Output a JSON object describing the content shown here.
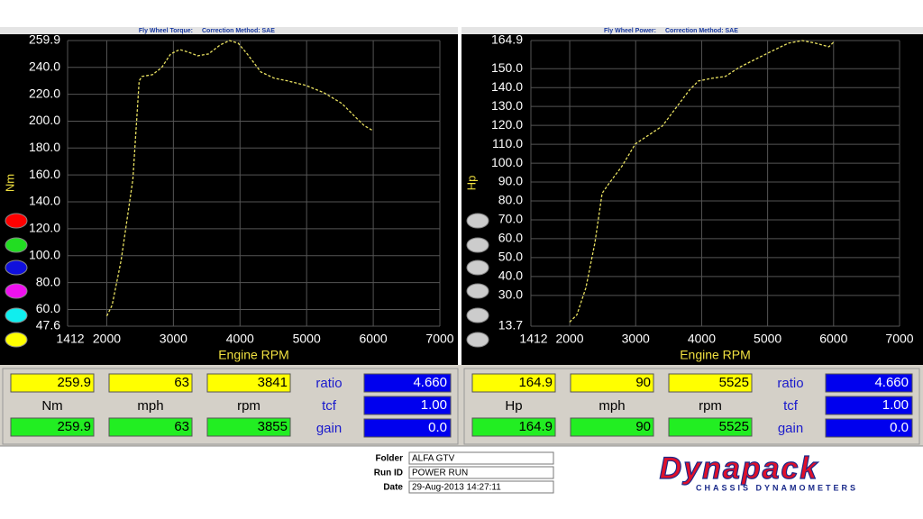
{
  "chart_data": [
    {
      "type": "line",
      "title": "Fly Wheel Torque:",
      "subtitle": "Correction Method: SAE",
      "y_label": "Nm",
      "x_label": "Engine RPM",
      "color": "#e8e060",
      "x": [
        2000,
        2081,
        2216,
        2392,
        2486,
        2527,
        2689,
        2824,
        2959,
        3095,
        3230,
        3365,
        3527,
        3703,
        3841,
        3973,
        4108,
        4311,
        4514,
        4716,
        4986,
        5257,
        5527,
        5730,
        5865,
        5986
      ],
      "values": [
        55.2,
        63.2,
        96.6,
        156.6,
        229.9,
        233.2,
        234.6,
        239.9,
        249.9,
        253.2,
        251.2,
        248.6,
        249.9,
        256.6,
        259.9,
        257.9,
        249.9,
        236.6,
        231.9,
        229.9,
        226.6,
        221.2,
        213.2,
        203.2,
        196.6,
        193.2
      ],
      "xlim": [
        1412,
        7000
      ],
      "xticks": [
        1412,
        2000,
        3000,
        4000,
        5000,
        6000,
        7000
      ],
      "ylim": [
        47.6,
        259.9
      ],
      "yticks": [
        47.6,
        {
          "value": 60,
          "label": "60.0"
        },
        {
          "value": 80,
          "label": "80.0"
        },
        {
          "value": 100,
          "label": "100.0"
        },
        {
          "value": 120,
          "label": "120.0"
        },
        {
          "value": 140,
          "label": "140.0"
        },
        {
          "value": 160,
          "label": "160.0"
        },
        {
          "value": 180,
          "label": "180.0"
        },
        {
          "value": 200,
          "label": "200.0"
        },
        {
          "value": 220,
          "label": "220.0"
        },
        {
          "value": 240,
          "label": "240.0"
        },
        259.9
      ],
      "grid": true
    },
    {
      "type": "line",
      "title": "Fly Wheel Power:",
      "subtitle": "Correction Method: SAE",
      "y_label": "Hp",
      "x_label": "Engine RPM",
      "color": "#e8e060",
      "x": [
        2000,
        2109,
        2246,
        2382,
        2491,
        2587,
        2791,
        2996,
        3201,
        3405,
        3610,
        3815,
        3951,
        4156,
        4360,
        4565,
        4838,
        5111,
        5315,
        5525,
        5724,
        5929,
        6011
      ],
      "values": [
        15.9,
        19.7,
        34.0,
        57.8,
        84.0,
        88.8,
        98.3,
        110.2,
        114.9,
        119.7,
        129.2,
        138.7,
        143.5,
        144.9,
        145.9,
        150.6,
        155.4,
        160.1,
        163.5,
        164.9,
        163.5,
        161.6,
        164.4
      ],
      "xlim": [
        1412,
        7000
      ],
      "xticks": [
        1412,
        2000,
        3000,
        4000,
        5000,
        6000,
        7000
      ],
      "ylim": [
        13.7,
        164.9
      ],
      "yticks": [
        13.7,
        {
          "value": 30,
          "label": "30.0"
        },
        {
          "value": 40,
          "label": "40.0"
        },
        {
          "value": 50,
          "label": "50.0"
        },
        {
          "value": 60,
          "label": "60.0"
        },
        {
          "value": 70,
          "label": "70.0"
        },
        {
          "value": 80,
          "label": "80.0"
        },
        {
          "value": 90,
          "label": "90.0"
        },
        {
          "value": 100,
          "label": "100.0"
        },
        {
          "value": 110,
          "label": "110.0"
        },
        {
          "value": 120,
          "label": "120.0"
        },
        {
          "value": 130,
          "label": "130.0"
        },
        {
          "value": 140,
          "label": "140.0"
        },
        {
          "value": 150,
          "label": "150.0"
        },
        164.9
      ],
      "grid": true
    }
  ],
  "readouts": [
    {
      "top": [
        "259.9",
        "63",
        "3841"
      ],
      "units": [
        "Nm",
        "mph",
        "rpm"
      ],
      "bottom": [
        "259.9",
        "63",
        "3855"
      ],
      "params": [
        [
          "ratio",
          "4.660"
        ],
        [
          "tcf",
          "1.00"
        ],
        [
          "gain",
          "0.0"
        ]
      ]
    },
    {
      "top": [
        "164.9",
        "90",
        "5525"
      ],
      "units": [
        "Hp",
        "mph",
        "rpm"
      ],
      "bottom": [
        "164.9",
        "90",
        "5525"
      ],
      "params": [
        [
          "ratio",
          "4.660"
        ],
        [
          "tcf",
          "1.00"
        ],
        [
          "gain",
          "0.0"
        ]
      ]
    }
  ],
  "footer": {
    "fields": [
      [
        "Folder",
        "ALFA GTV"
      ],
      [
        "Run ID",
        "POWER RUN"
      ],
      [
        "Date",
        "29-Aug-2013  14:27:11"
      ]
    ]
  },
  "logo": {
    "name": "Dynapack",
    "tagline": "CHASSIS DYNAMOMETERS"
  }
}
